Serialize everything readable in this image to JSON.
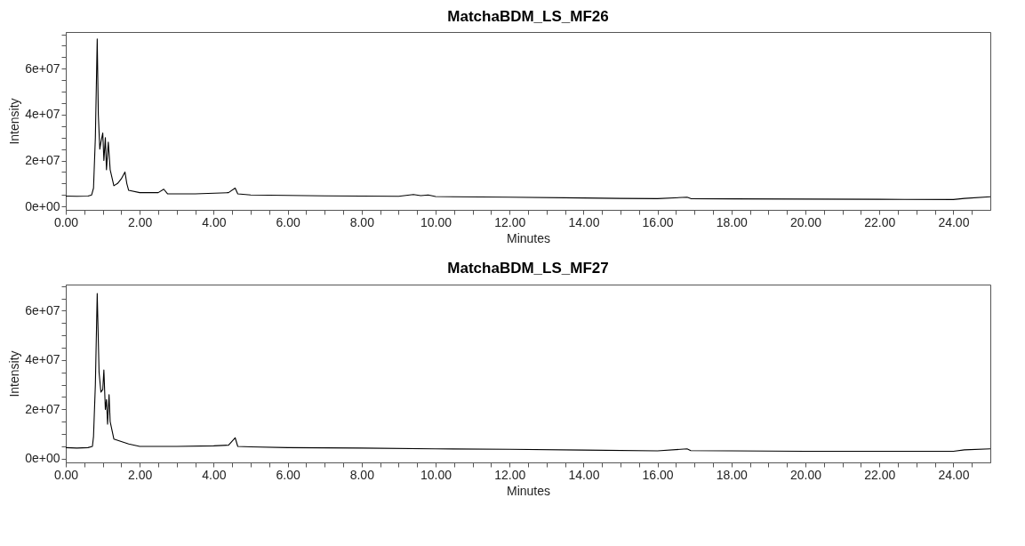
{
  "chart_data": [
    {
      "type": "line",
      "title": "MatchaBDM_LS_MF26",
      "xlabel": "Minutes",
      "ylabel": "Intensity",
      "grid": false,
      "marker": "none",
      "line_style": "solid",
      "xlim": [
        0,
        25
      ],
      "ylim": [
        -1500000,
        76000000
      ],
      "xticks": [
        {
          "value": 0,
          "label": "0.00"
        },
        {
          "value": 0.5,
          "label": null
        },
        {
          "value": 1,
          "label": null
        },
        {
          "value": 1.5,
          "label": null
        },
        {
          "value": 2,
          "label": "2.00"
        },
        {
          "value": 2.5,
          "label": null
        },
        {
          "value": 3,
          "label": null
        },
        {
          "value": 3.5,
          "label": null
        },
        {
          "value": 4,
          "label": "4.00"
        },
        {
          "value": 4.5,
          "label": null
        },
        {
          "value": 5,
          "label": null
        },
        {
          "value": 5.5,
          "label": null
        },
        {
          "value": 6,
          "label": "6.00"
        },
        {
          "value": 6.5,
          "label": null
        },
        {
          "value": 7,
          "label": null
        },
        {
          "value": 7.5,
          "label": null
        },
        {
          "value": 8,
          "label": "8.00"
        },
        {
          "value": 8.5,
          "label": null
        },
        {
          "value": 9,
          "label": null
        },
        {
          "value": 9.5,
          "label": null
        },
        {
          "value": 10,
          "label": "10.00"
        },
        {
          "value": 10.5,
          "label": null
        },
        {
          "value": 11,
          "label": null
        },
        {
          "value": 11.5,
          "label": null
        },
        {
          "value": 12,
          "label": "12.00"
        },
        {
          "value": 12.5,
          "label": null
        },
        {
          "value": 13,
          "label": null
        },
        {
          "value": 13.5,
          "label": null
        },
        {
          "value": 14,
          "label": "14.00"
        },
        {
          "value": 14.5,
          "label": null
        },
        {
          "value": 15,
          "label": null
        },
        {
          "value": 15.5,
          "label": null
        },
        {
          "value": 16,
          "label": "16.00"
        },
        {
          "value": 16.5,
          "label": null
        },
        {
          "value": 17,
          "label": null
        },
        {
          "value": 17.5,
          "label": null
        },
        {
          "value": 18,
          "label": "18.00"
        },
        {
          "value": 18.5,
          "label": null
        },
        {
          "value": 19,
          "label": null
        },
        {
          "value": 19.5,
          "label": null
        },
        {
          "value": 20,
          "label": "20.00"
        },
        {
          "value": 20.5,
          "label": null
        },
        {
          "value": 21,
          "label": null
        },
        {
          "value": 21.5,
          "label": null
        },
        {
          "value": 22,
          "label": "22.00"
        },
        {
          "value": 22.5,
          "label": null
        },
        {
          "value": 23,
          "label": null
        },
        {
          "value": 23.5,
          "label": null
        },
        {
          "value": 24,
          "label": "24.00"
        },
        {
          "value": 24.5,
          "label": null
        }
      ],
      "yticks": [
        {
          "value": 0,
          "label": "0e+00"
        },
        {
          "value": 5000000,
          "label": null
        },
        {
          "value": 10000000,
          "label": null
        },
        {
          "value": 15000000,
          "label": null
        },
        {
          "value": 20000000,
          "label": "2e+07"
        },
        {
          "value": 25000000,
          "label": null
        },
        {
          "value": 30000000,
          "label": null
        },
        {
          "value": 35000000,
          "label": null
        },
        {
          "value": 40000000,
          "label": "4e+07"
        },
        {
          "value": 45000000,
          "label": null
        },
        {
          "value": 50000000,
          "label": null
        },
        {
          "value": 55000000,
          "label": null
        },
        {
          "value": 60000000,
          "label": "6e+07"
        },
        {
          "value": 65000000,
          "label": null
        },
        {
          "value": 70000000,
          "label": null
        },
        {
          "value": 75000000,
          "label": null
        }
      ],
      "series": [
        {
          "color": "#000000",
          "x": [
            0,
            0.3,
            0.6,
            0.7,
            0.75,
            0.8,
            0.85,
            0.88,
            0.92,
            0.95,
            1.0,
            1.03,
            1.07,
            1.1,
            1.15,
            1.2,
            1.3,
            1.4,
            1.5,
            1.6,
            1.65,
            1.7,
            2.0,
            2.5,
            2.65,
            2.75,
            3.5,
            4.4,
            4.58,
            4.65,
            5,
            6,
            7,
            8,
            9,
            9.4,
            9.6,
            9.8,
            10,
            12,
            14,
            15,
            16,
            16.8,
            16.9,
            18,
            20,
            22,
            24,
            24.3,
            25
          ],
          "values": [
            4500000,
            4400000,
            4500000,
            5000000,
            8000000,
            30000000,
            73000000,
            40000000,
            25000000,
            28000000,
            32000000,
            20000000,
            30000000,
            16000000,
            28000000,
            16000000,
            9000000,
            10000000,
            12000000,
            15000000,
            10000000,
            7000000,
            6000000,
            6000000,
            7500000,
            5500000,
            5500000,
            6000000,
            8000000,
            5500000,
            5000000,
            4800000,
            4600000,
            4500000,
            4400000,
            5200000,
            4700000,
            5000000,
            4300000,
            4000000,
            3700000,
            3500000,
            3400000,
            4000000,
            3400000,
            3300000,
            3200000,
            3100000,
            3000000,
            3500000,
            4200000
          ]
        }
      ]
    },
    {
      "type": "line",
      "title": "MatchaBDM_LS_MF27",
      "xlabel": "Minutes",
      "ylabel": "Intensity",
      "grid": false,
      "marker": "none",
      "line_style": "solid",
      "xlim": [
        0,
        25
      ],
      "ylim": [
        -1500000,
        70600000
      ],
      "xticks": [
        {
          "value": 0,
          "label": "0.00"
        },
        {
          "value": 0.5,
          "label": null
        },
        {
          "value": 1,
          "label": null
        },
        {
          "value": 1.5,
          "label": null
        },
        {
          "value": 2,
          "label": "2.00"
        },
        {
          "value": 2.5,
          "label": null
        },
        {
          "value": 3,
          "label": null
        },
        {
          "value": 3.5,
          "label": null
        },
        {
          "value": 4,
          "label": "4.00"
        },
        {
          "value": 4.5,
          "label": null
        },
        {
          "value": 5,
          "label": null
        },
        {
          "value": 5.5,
          "label": null
        },
        {
          "value": 6,
          "label": "6.00"
        },
        {
          "value": 6.5,
          "label": null
        },
        {
          "value": 7,
          "label": null
        },
        {
          "value": 7.5,
          "label": null
        },
        {
          "value": 8,
          "label": "8.00"
        },
        {
          "value": 8.5,
          "label": null
        },
        {
          "value": 9,
          "label": null
        },
        {
          "value": 9.5,
          "label": null
        },
        {
          "value": 10,
          "label": "10.00"
        },
        {
          "value": 10.5,
          "label": null
        },
        {
          "value": 11,
          "label": null
        },
        {
          "value": 11.5,
          "label": null
        },
        {
          "value": 12,
          "label": "12.00"
        },
        {
          "value": 12.5,
          "label": null
        },
        {
          "value": 13,
          "label": null
        },
        {
          "value": 13.5,
          "label": null
        },
        {
          "value": 14,
          "label": "14.00"
        },
        {
          "value": 14.5,
          "label": null
        },
        {
          "value": 15,
          "label": null
        },
        {
          "value": 15.5,
          "label": null
        },
        {
          "value": 16,
          "label": "16.00"
        },
        {
          "value": 16.5,
          "label": null
        },
        {
          "value": 17,
          "label": null
        },
        {
          "value": 17.5,
          "label": null
        },
        {
          "value": 18,
          "label": "18.00"
        },
        {
          "value": 18.5,
          "label": null
        },
        {
          "value": 19,
          "label": null
        },
        {
          "value": 19.5,
          "label": null
        },
        {
          "value": 20,
          "label": "20.00"
        },
        {
          "value": 20.5,
          "label": null
        },
        {
          "value": 21,
          "label": null
        },
        {
          "value": 21.5,
          "label": null
        },
        {
          "value": 22,
          "label": "22.00"
        },
        {
          "value": 22.5,
          "label": null
        },
        {
          "value": 23,
          "label": null
        },
        {
          "value": 23.5,
          "label": null
        },
        {
          "value": 24,
          "label": "24.00"
        },
        {
          "value": 24.5,
          "label": null
        }
      ],
      "yticks": [
        {
          "value": 0,
          "label": "0e+00"
        },
        {
          "value": 5000000,
          "label": null
        },
        {
          "value": 10000000,
          "label": null
        },
        {
          "value": 15000000,
          "label": null
        },
        {
          "value": 20000000,
          "label": "2e+07"
        },
        {
          "value": 25000000,
          "label": null
        },
        {
          "value": 30000000,
          "label": null
        },
        {
          "value": 35000000,
          "label": null
        },
        {
          "value": 40000000,
          "label": "4e+07"
        },
        {
          "value": 45000000,
          "label": null
        },
        {
          "value": 50000000,
          "label": null
        },
        {
          "value": 55000000,
          "label": null
        },
        {
          "value": 60000000,
          "label": "6e+07"
        },
        {
          "value": 65000000,
          "label": null
        },
        {
          "value": 70000000,
          "label": null
        }
      ],
      "series": [
        {
          "color": "#000000",
          "x": [
            0,
            0.3,
            0.6,
            0.72,
            0.75,
            0.8,
            0.85,
            0.9,
            0.95,
            1.0,
            1.03,
            1.07,
            1.1,
            1.13,
            1.17,
            1.2,
            1.3,
            1.5,
            1.7,
            2,
            3,
            4,
            4.4,
            4.58,
            4.65,
            5,
            6,
            8,
            10,
            12,
            14,
            16,
            16.8,
            16.9,
            18,
            20,
            22,
            24,
            24.3,
            25
          ],
          "values": [
            4500000,
            4300000,
            4500000,
            5000000,
            9000000,
            30000000,
            67000000,
            35000000,
            27000000,
            28000000,
            36000000,
            20000000,
            24000000,
            14000000,
            26000000,
            15000000,
            8000000,
            7000000,
            6000000,
            5000000,
            5000000,
            5200000,
            5500000,
            8500000,
            5000000,
            4800000,
            4500000,
            4300000,
            4000000,
            3800000,
            3500000,
            3200000,
            4000000,
            3300000,
            3200000,
            3000000,
            3000000,
            3000000,
            3600000,
            4000000
          ]
        }
      ]
    }
  ]
}
